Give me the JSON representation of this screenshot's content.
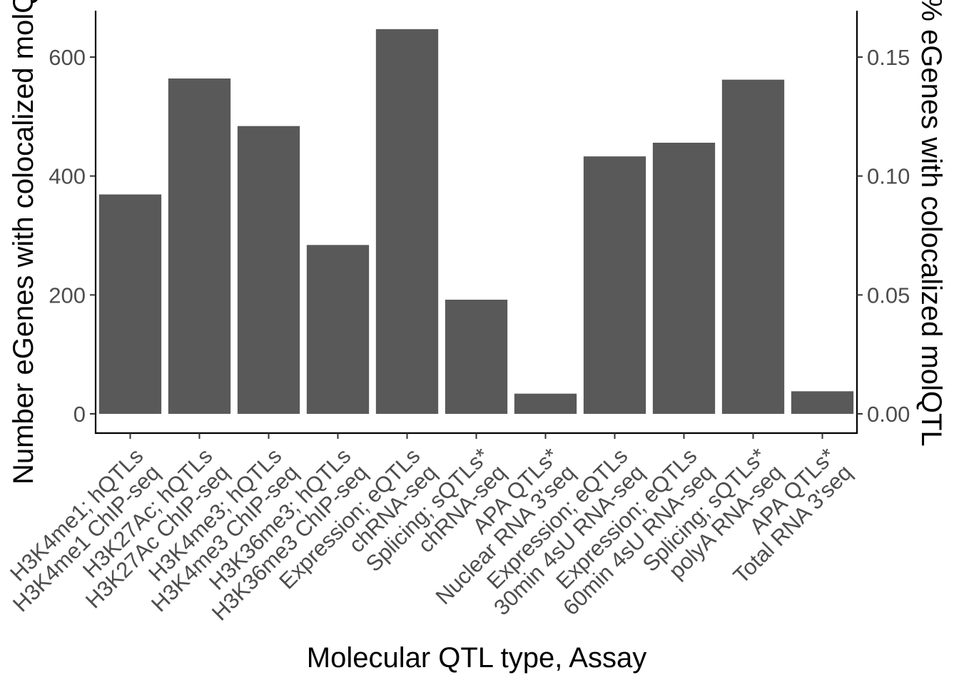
{
  "chart_data": {
    "type": "bar",
    "xlabel": "Molecular QTL type, Assay",
    "ylabel": "Number eGenes with colocalized molQTL",
    "y2label": "% eGenes with colocalized molQTL",
    "categories": [
      [
        "H3K4me1; hQTLs",
        "H3K4me1 ChIP-seq"
      ],
      [
        "H3K27Ac; hQTLs",
        "H3K27Ac ChIP-seq"
      ],
      [
        "H3K4me3; hQTLs",
        "H3K4me3 ChIP-seq"
      ],
      [
        "H3K36me3; hQTLs",
        "H3K36me3 ChIP-seq"
      ],
      [
        "Expression; eQTLs",
        "chRNA-seq"
      ],
      [
        "Splicing; sQTLs*",
        "chRNA-seq"
      ],
      [
        "APA QTLs*",
        "Nuclear RNA 3'seq"
      ],
      [
        "Expression; eQTLs",
        "30min 4sU RNA-seq"
      ],
      [
        "Expression; eQTLs",
        "60min 4sU RNA-seq"
      ],
      [
        "Splicing; sQTLs*",
        "polyA RNA-seq"
      ],
      [
        "APA QTLs*",
        "Total RNA 3'seq"
      ]
    ],
    "values": [
      369,
      564,
      484,
      284,
      647,
      192,
      34,
      433,
      456,
      562,
      38
    ],
    "ylim": [
      -30,
      680
    ],
    "yticks": [
      0,
      200,
      400,
      600
    ],
    "y2ticks": [
      "0.00",
      "0.05",
      "0.10",
      "0.15"
    ],
    "y2_per_unit": 0.00025,
    "bar_color": "#595959",
    "grid": false
  }
}
